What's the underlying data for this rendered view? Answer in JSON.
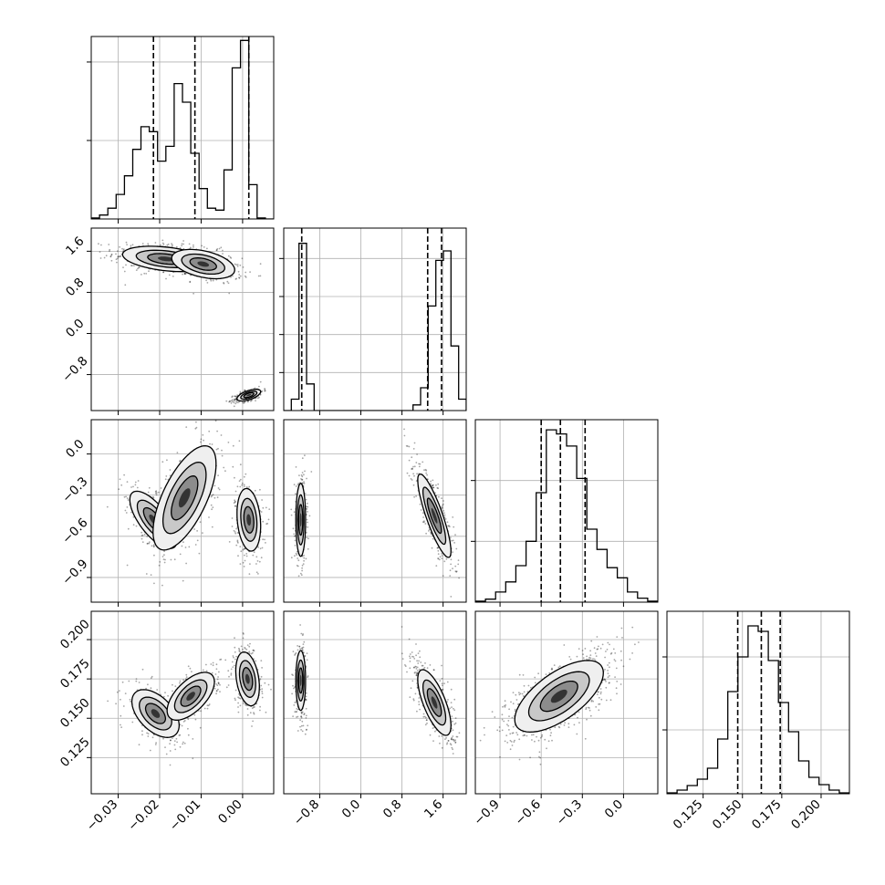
{
  "chart_data": {
    "type": "corner",
    "n_params": 4,
    "grid": true,
    "labels": [
      "",
      "",
      "",
      ""
    ],
    "ranges": [
      [
        -0.0365,
        0.0075
      ],
      [
        -1.5,
        2.05
      ],
      [
        -1.08,
        0.25
      ],
      [
        0.102,
        0.218
      ]
    ],
    "ticks": [
      [
        "-0.03",
        "-0.02",
        "-0.01",
        "0.00"
      ],
      [
        "-0.8",
        "0.0",
        "0.8",
        "1.6"
      ],
      [
        "-0.9",
        "-0.6",
        "-0.3",
        "0.0"
      ],
      [
        "0.125",
        "0.150",
        "0.175",
        "0.200"
      ]
    ],
    "tick_values": [
      [
        -0.03,
        -0.02,
        -0.01,
        0.0
      ],
      [
        -0.8,
        0.0,
        0.8,
        1.6
      ],
      [
        -0.9,
        -0.6,
        -0.3,
        0.0
      ],
      [
        0.125,
        0.15,
        0.175,
        0.2
      ]
    ],
    "quantiles": [
      [
        -0.0215,
        -0.0115,
        0.0015
      ],
      [
        -1.15,
        1.3,
        1.57
      ],
      [
        -0.6,
        -0.46,
        -0.28
      ],
      [
        0.147,
        0.162,
        0.174
      ]
    ],
    "histograms": [
      {
        "param": 0,
        "y_grid_ticks": [
          0.4,
          0.8
        ],
        "y_max": 0.93,
        "counts": [
          0.005,
          0.02,
          0.055,
          0.125,
          0.22,
          0.355,
          0.47,
          0.445,
          0.295,
          0.37,
          0.69,
          0.595,
          0.335,
          0.155,
          0.055,
          0.045,
          0.25,
          0.77,
          0.91,
          0.175,
          0.005,
          0.0
        ]
      },
      {
        "param": 1,
        "y_grid_ticks": [
          0.2,
          0.4,
          0.6,
          0.8
        ],
        "y_max": 0.96,
        "counts": [
          0.0,
          0.06,
          0.88,
          0.14,
          0.0,
          0.0,
          0.0,
          0.0,
          0.0,
          0.0,
          0.0,
          0.0,
          0.0,
          0.0,
          0.0,
          0.0,
          0.0,
          0.03,
          0.12,
          0.55,
          0.79,
          0.84,
          0.34,
          0.06
        ]
      },
      {
        "param": 2,
        "y_grid_ticks": [
          0.3,
          0.6
        ],
        "y_max": 0.9,
        "counts": [
          0.005,
          0.015,
          0.05,
          0.1,
          0.18,
          0.3,
          0.54,
          0.85,
          0.83,
          0.77,
          0.61,
          0.36,
          0.26,
          0.17,
          0.12,
          0.05,
          0.02,
          0.005
        ]
      },
      {
        "param": 3,
        "y_grid_ticks": [
          0.35,
          0.75
        ],
        "y_max": 1.0,
        "counts": [
          0.005,
          0.02,
          0.045,
          0.08,
          0.14,
          0.3,
          0.56,
          0.75,
          0.92,
          0.89,
          0.73,
          0.5,
          0.34,
          0.18,
          0.09,
          0.05,
          0.02,
          0.005
        ]
      }
    ],
    "pair_clusters": {
      "1_0": [
        {
          "mx": -0.0185,
          "my": 1.45,
          "sx": 0.0055,
          "sy": 0.13,
          "rho": -0.35,
          "n": 520
        },
        {
          "mx": -0.0095,
          "my": 1.35,
          "sx": 0.004,
          "sy": 0.15,
          "rho": -0.4,
          "n": 320
        },
        {
          "mx": 0.0015,
          "my": -1.2,
          "sx": 0.0015,
          "sy": 0.06,
          "rho": 0.6,
          "n": 380
        }
      ],
      "2_0": [
        {
          "mx": -0.0215,
          "my": -0.48,
          "sx": 0.003,
          "sy": 0.11,
          "rho": -0.7,
          "n": 260
        },
        {
          "mx": -0.014,
          "my": -0.32,
          "sx": 0.004,
          "sy": 0.2,
          "rho": 0.65,
          "n": 330
        },
        {
          "mx": 0.0015,
          "my": -0.48,
          "sx": 0.0015,
          "sy": 0.12,
          "rho": -0.2,
          "n": 380
        }
      ],
      "3_0": [
        {
          "mx": -0.021,
          "my": 0.153,
          "sx": 0.003,
          "sy": 0.008,
          "rho": -0.5,
          "n": 260
        },
        {
          "mx": -0.0125,
          "my": 0.164,
          "sx": 0.003,
          "sy": 0.008,
          "rho": 0.6,
          "n": 330
        },
        {
          "mx": 0.0012,
          "my": 0.175,
          "sx": 0.0015,
          "sy": 0.009,
          "rho": -0.3,
          "n": 380
        }
      ],
      "2_1": [
        {
          "mx": -1.17,
          "my": -0.48,
          "sx": 0.05,
          "sy": 0.14,
          "rho": 0.0,
          "n": 380
        },
        {
          "mx": 1.43,
          "my": -0.45,
          "sx": 0.17,
          "sy": 0.16,
          "rho": -0.85,
          "n": 600
        }
      ],
      "3_1": [
        {
          "mx": -1.17,
          "my": 0.174,
          "sx": 0.05,
          "sy": 0.01,
          "rho": 0.0,
          "n": 380
        },
        {
          "mx": 1.43,
          "my": 0.16,
          "sx": 0.17,
          "sy": 0.011,
          "rho": -0.7,
          "n": 600
        }
      ],
      "3_2": [
        {
          "mx": -0.47,
          "my": 0.164,
          "sx": 0.17,
          "sy": 0.012,
          "rho": 0.65,
          "n": 900
        }
      ]
    }
  }
}
